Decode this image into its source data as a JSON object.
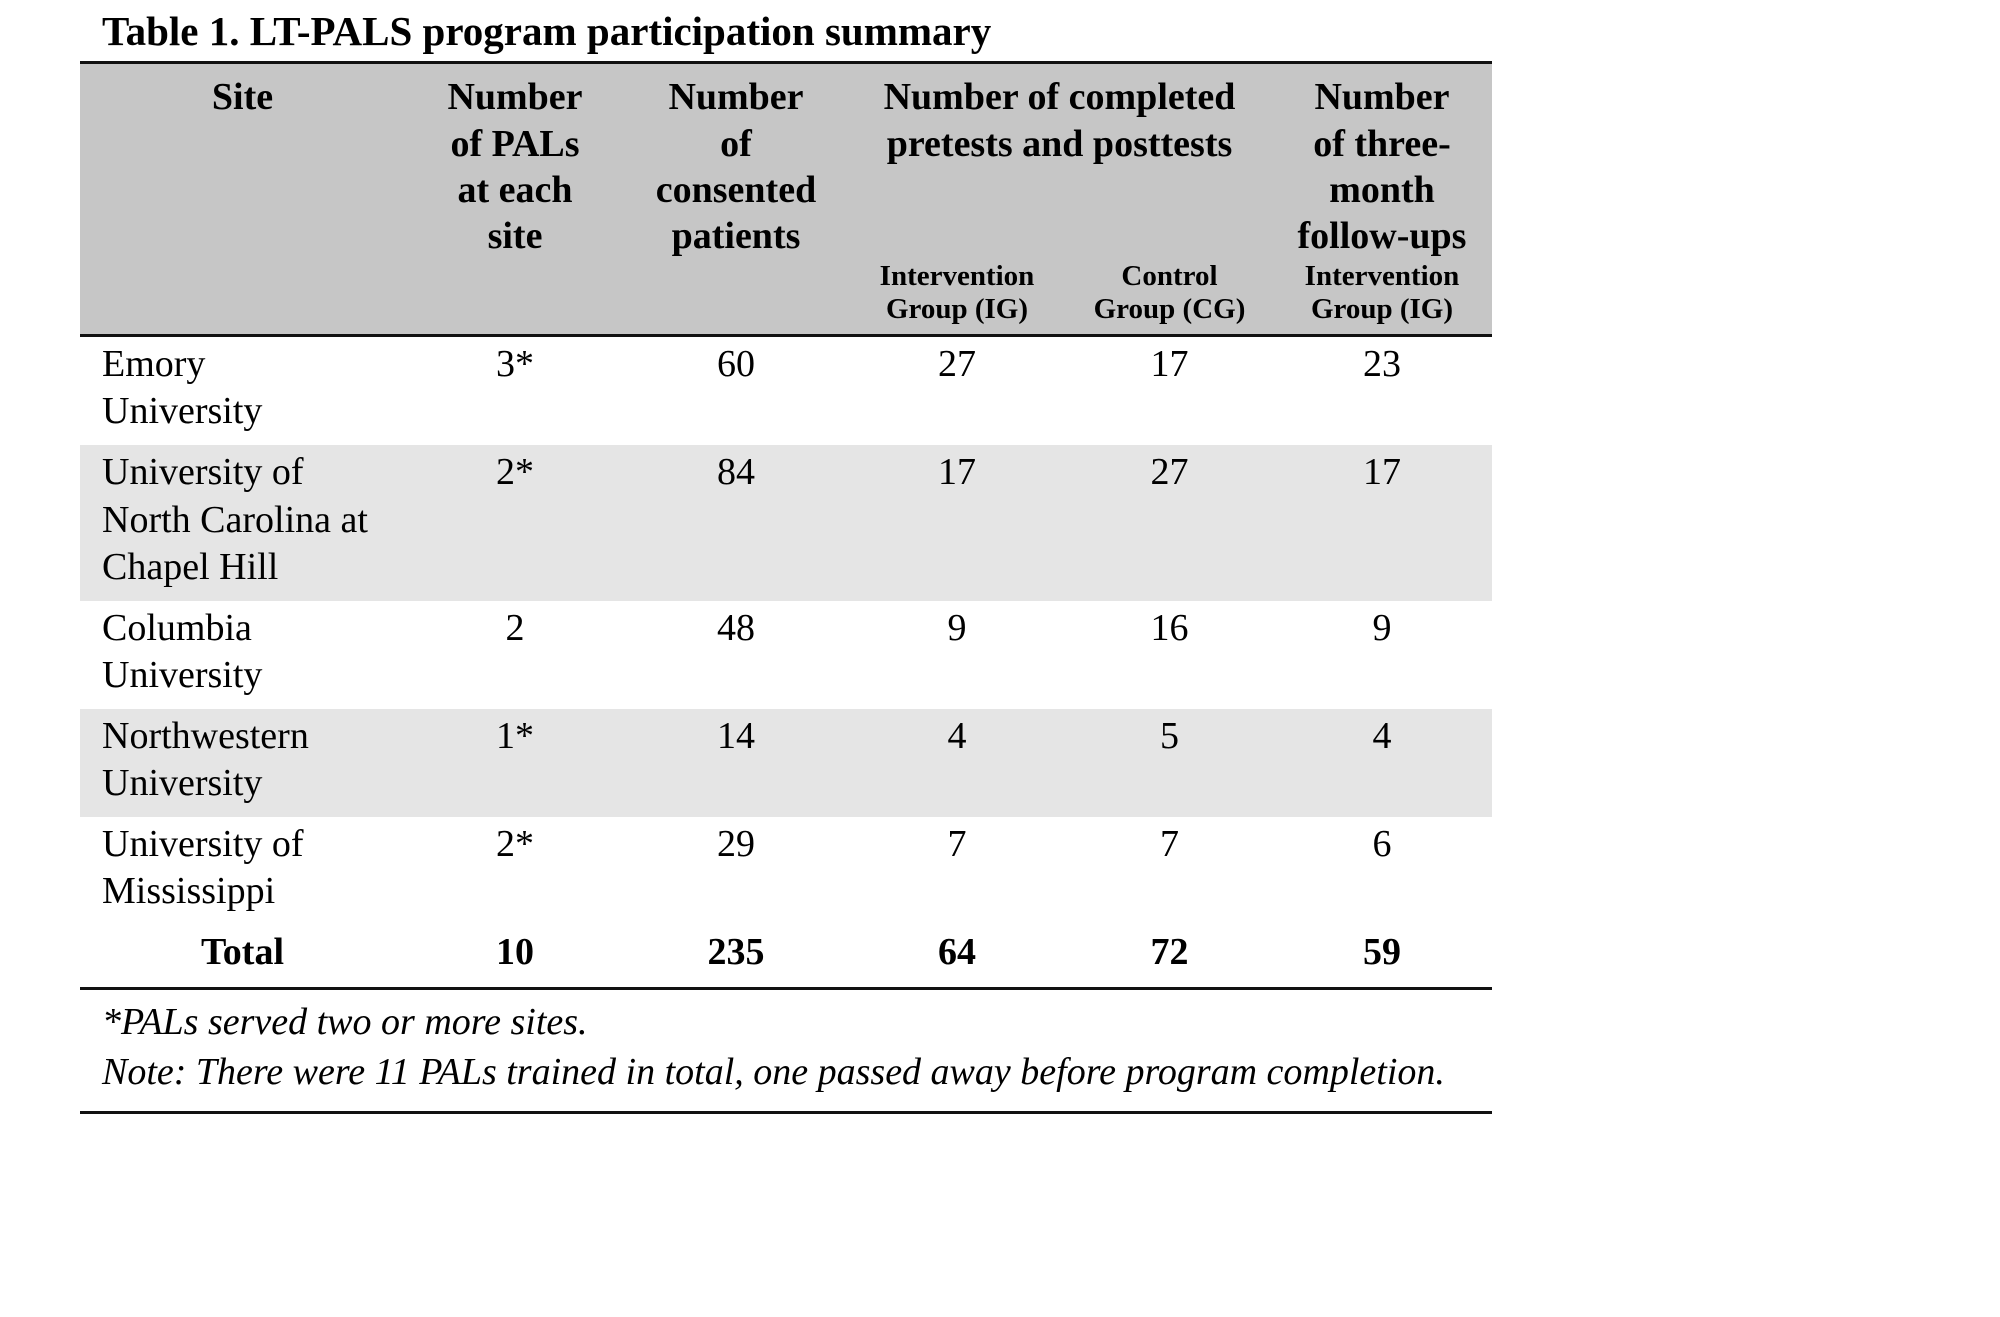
{
  "title": "Table 1. LT-PALS program participation summary",
  "table": {
    "headers": {
      "site": "Site",
      "pals": "Number\nof PALs\nat each\nsite",
      "consented": "Number\nof\nconsented\npatients",
      "pretests_posttests": "Number of completed\npretests and posttests",
      "intervention_group": "Intervention\nGroup (IG)",
      "control_group": "Control\nGroup (CG)",
      "followups": "Number\nof three-\nmonth\nfollow-ups",
      "followups_intervention_group": "Intervention\nGroup (IG)"
    },
    "rows": [
      {
        "site": "Emory\nUniversity",
        "pals": "3*",
        "consented": "60",
        "ig": "27",
        "cg": "17",
        "followup": "23"
      },
      {
        "site": "University of\nNorth Carolina at\nChapel Hill",
        "pals": "2*",
        "consented": "84",
        "ig": "17",
        "cg": "27",
        "followup": "17"
      },
      {
        "site": "Columbia\nUniversity",
        "pals": "2",
        "consented": "48",
        "ig": "9",
        "cg": "16",
        "followup": "9"
      },
      {
        "site": "Northwestern\nUniversity",
        "pals": "1*",
        "consented": "14",
        "ig": "4",
        "cg": "5",
        "followup": "4"
      },
      {
        "site": "University of\nMississippi",
        "pals": "2*",
        "consented": "29",
        "ig": "7",
        "cg": "7",
        "followup": "6"
      }
    ],
    "total": {
      "site": "Total",
      "pals": "10",
      "consented": "235",
      "ig": "64",
      "cg": "72",
      "followup": "59"
    }
  },
  "footnotes": [
    "*PALs served two or more sites.",
    "Note: There were 11 PALs trained in total, one passed away before program completion."
  ],
  "colors": {
    "header_bg": "#c6c6c6",
    "alt_row_bg": "#e5e5e5",
    "rule": "#111111"
  }
}
